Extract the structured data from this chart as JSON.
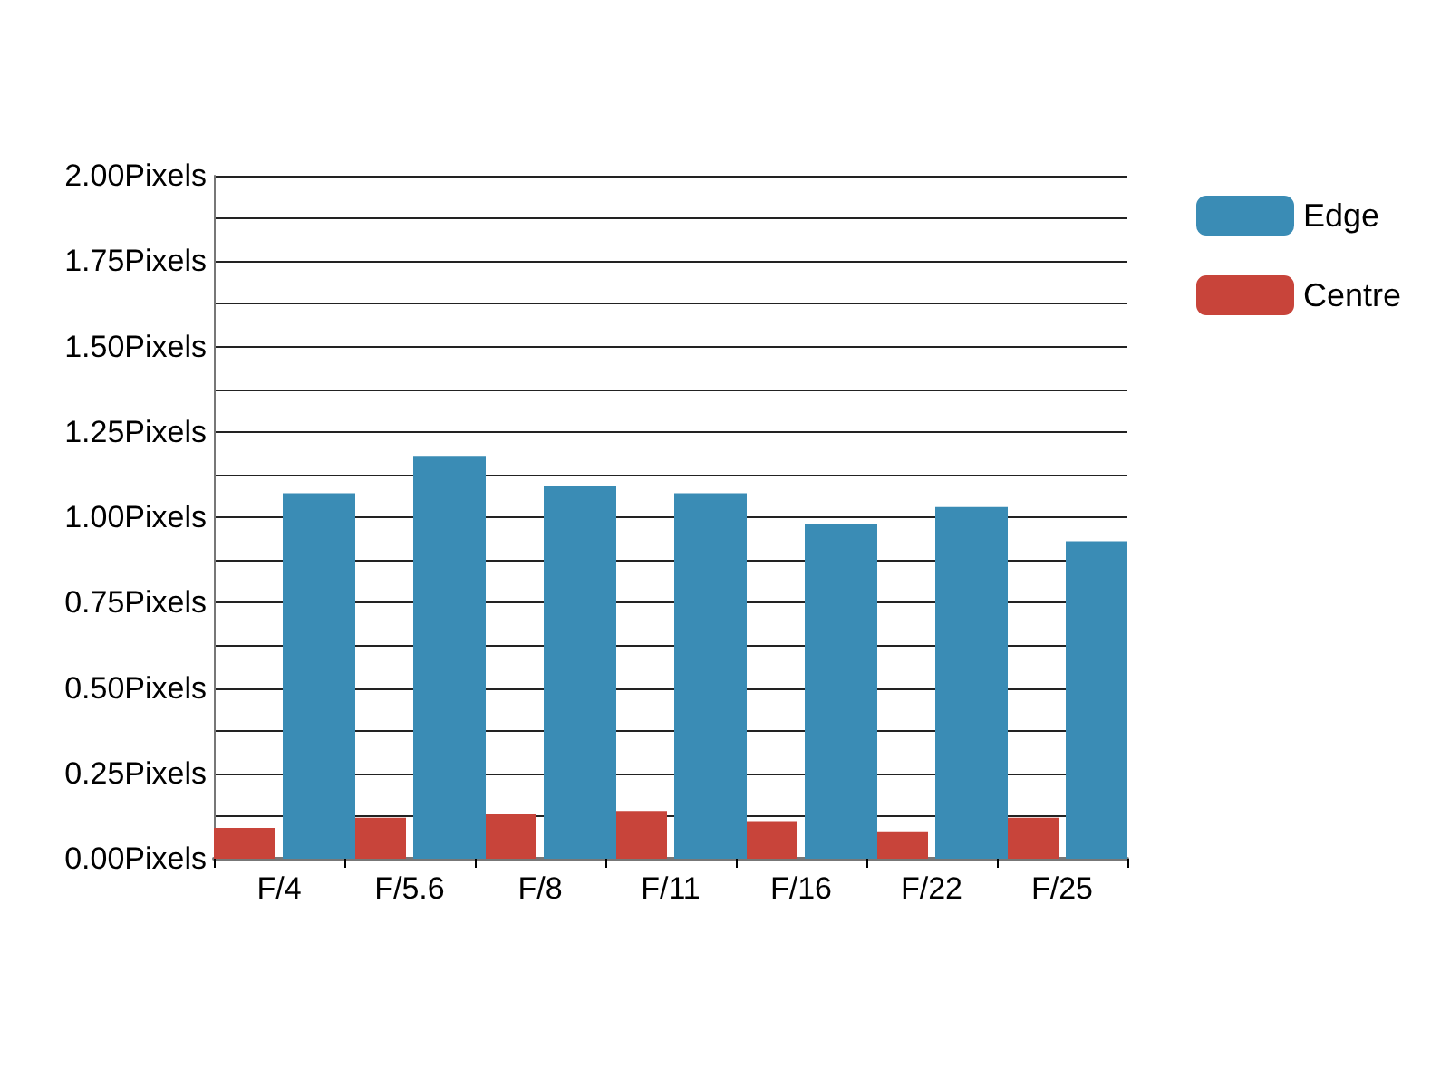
{
  "chart_data": {
    "type": "bar",
    "categories": [
      "F/4",
      "F/5.6",
      "F/8",
      "F/11",
      "F/16",
      "F/22",
      "F/25"
    ],
    "series": [
      {
        "name": "Centre",
        "color": "#c8443a",
        "values": [
          0.09,
          0.12,
          0.13,
          0.14,
          0.11,
          0.08,
          0.12
        ]
      },
      {
        "name": "Edge",
        "color": "#3a8cb5",
        "values": [
          1.07,
          1.18,
          1.09,
          1.07,
          0.98,
          1.03,
          0.93
        ]
      }
    ],
    "ylim": [
      0,
      2
    ],
    "yticks": [
      {
        "value": 0,
        "label": "0.00Pixels"
      },
      {
        "value": 0.125,
        "label": null
      },
      {
        "value": 0.25,
        "label": "0.25Pixels"
      },
      {
        "value": 0.375,
        "label": null
      },
      {
        "value": 0.5,
        "label": "0.50Pixels"
      },
      {
        "value": 0.625,
        "label": null
      },
      {
        "value": 0.75,
        "label": "0.75Pixels"
      },
      {
        "value": 0.875,
        "label": null
      },
      {
        "value": 1,
        "label": "1.00Pixels"
      },
      {
        "value": 1.125,
        "label": null
      },
      {
        "value": 1.25,
        "label": "1.25Pixels"
      },
      {
        "value": 1.375,
        "label": null
      },
      {
        "value": 1.5,
        "label": "1.50Pixels"
      },
      {
        "value": 1.625,
        "label": null
      },
      {
        "value": 1.75,
        "label": "1.75Pixels"
      },
      {
        "value": 1.875,
        "label": null
      },
      {
        "value": 2,
        "label": "2.00Pixels"
      }
    ],
    "grid": "y",
    "legend": "right"
  }
}
